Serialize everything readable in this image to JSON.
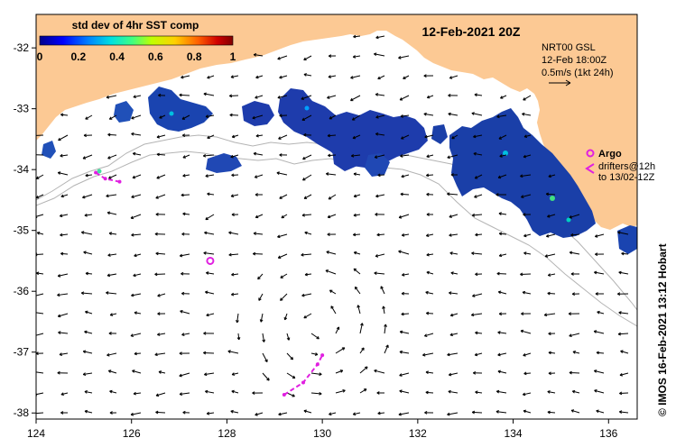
{
  "colorbar": {
    "title": "std dev of 4hr SST comp",
    "ticks": [
      "0",
      "0.2",
      "0.4",
      "0.6",
      "0.8",
      "1"
    ],
    "colors": [
      "#00008b",
      "#0000ff",
      "#0080ff",
      "#00e0e0",
      "#40ff80",
      "#c0ff00",
      "#ffd000",
      "#ff6000",
      "#d00000",
      "#800000"
    ]
  },
  "date_label": "12-Feb-2021 20Z",
  "current_legend": {
    "product": "NRT00 GSL",
    "time": "12-Feb 18:00Z",
    "scale": "0.5m/s (1kt 24h)"
  },
  "argo_legend": {
    "argo": "Argo",
    "drifters": "drifters@12h",
    "window": "to 13/02-12Z"
  },
  "credit": "© IMOS 16-Feb-2021 13:12 Hobart",
  "axes": {
    "x_ticks": [
      "124",
      "126",
      "128",
      "130",
      "132",
      "134",
      "136"
    ],
    "y_ticks": [
      "-32",
      "-33",
      "-34",
      "-35",
      "-36",
      "-37",
      "-38"
    ],
    "x_range": [
      124,
      136.6
    ],
    "y_range": [
      -31.45,
      -38.1
    ]
  },
  "colors": {
    "land": "#fcc994",
    "ocean": "#ffffff",
    "argo": "#e020e0",
    "bathymetry": "#b4b4b4"
  },
  "argo_float": {
    "lon": 127.65,
    "lat": -35.5
  },
  "drifters": [
    {
      "track": [
        [
          125.25,
          -34.05
        ],
        [
          125.45,
          -34.15
        ],
        [
          125.75,
          -34.2
        ]
      ]
    },
    {
      "track": [
        [
          129.2,
          -37.7
        ],
        [
          129.6,
          -37.5
        ],
        [
          129.9,
          -37.2
        ],
        [
          130.0,
          -37.05
        ]
      ]
    }
  ]
}
